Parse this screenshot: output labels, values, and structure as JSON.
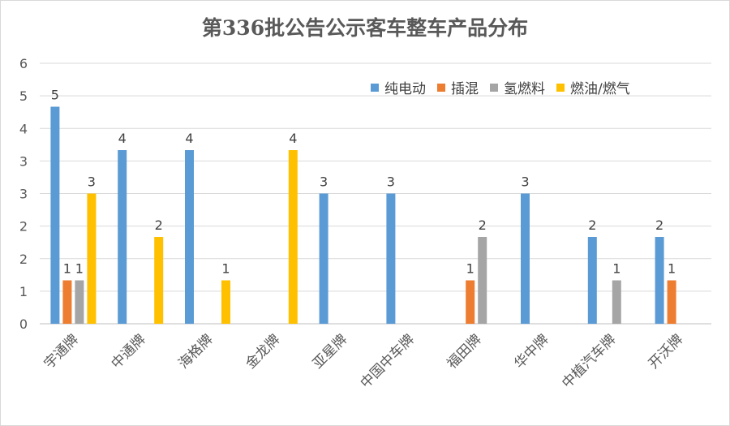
{
  "chart_data": {
    "type": "bar",
    "title": "第336批公告公示客车整车产品分布",
    "xlabel": "",
    "ylabel": "",
    "categories": [
      "宇通牌",
      "中通牌",
      "海格牌",
      "金龙牌",
      "亚星牌",
      "中国中车牌",
      "福田牌",
      "华中牌",
      "中植汽车牌",
      "开沃牌"
    ],
    "y_tick_labels": [
      "0",
      "1",
      "2",
      "2",
      "3",
      "3",
      "4",
      "5",
      "6"
    ],
    "series": [
      {
        "name": "纯电动",
        "color": "#5b9bd5",
        "values": [
          5,
          4,
          4,
          0,
          3,
          3,
          0,
          3,
          2,
          2
        ]
      },
      {
        "name": "插混",
        "color": "#ed7d31",
        "values": [
          1,
          0,
          0,
          0,
          0,
          0,
          1,
          0,
          0,
          1
        ]
      },
      {
        "name": "氢燃料",
        "color": "#a5a5a5",
        "values": [
          1,
          0,
          0,
          0,
          0,
          0,
          2,
          0,
          1,
          0
        ]
      },
      {
        "name": "燃油/燃气",
        "color": "#ffc000",
        "values": [
          3,
          2,
          1,
          4,
          0,
          0,
          0,
          0,
          0,
          0
        ]
      }
    ],
    "ylim": [
      0,
      6
    ],
    "grid": true,
    "legend_position": "top-right",
    "data_labels": true
  }
}
